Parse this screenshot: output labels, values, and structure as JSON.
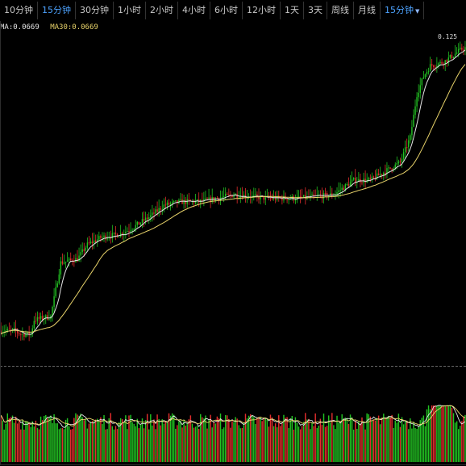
{
  "toolbar": {
    "tabs": [
      {
        "label": "10分钟",
        "active": false
      },
      {
        "label": "15分钟",
        "active": true
      },
      {
        "label": "30分钟",
        "active": false
      },
      {
        "label": "1小时",
        "active": false
      },
      {
        "label": "2小时",
        "active": false
      },
      {
        "label": "4小时",
        "active": false
      },
      {
        "label": "6小时",
        "active": false
      },
      {
        "label": "12小时",
        "active": false
      },
      {
        "label": "1天",
        "active": false
      },
      {
        "label": "3天",
        "active": false
      },
      {
        "label": "周线",
        "active": false
      },
      {
        "label": "月线",
        "active": false
      }
    ],
    "period_dropdown": {
      "label": "15分钟",
      "icon": "caret-down-icon"
    }
  },
  "legend": {
    "ma1": "MA:0.0669",
    "ma2": "MA30:0.0669"
  },
  "high_marker": "0.125",
  "colors": {
    "up": "#22c222",
    "down": "#e22d2d",
    "ma_fast": "#e6e6e6",
    "ma_slow": "#e8d36a",
    "active_tab": "#4da3ff"
  },
  "chart_data": {
    "type": "candlestick",
    "price_anchors": [
      [
        0,
        0.046
      ],
      [
        8,
        0.046
      ],
      [
        12,
        0.045
      ],
      [
        18,
        0.045
      ],
      [
        20,
        0.049
      ],
      [
        30,
        0.05
      ],
      [
        36,
        0.065
      ],
      [
        46,
        0.066
      ],
      [
        52,
        0.07
      ],
      [
        60,
        0.072
      ],
      [
        72,
        0.073
      ],
      [
        80,
        0.075
      ],
      [
        90,
        0.078
      ],
      [
        98,
        0.081
      ],
      [
        108,
        0.082
      ],
      [
        120,
        0.082
      ],
      [
        140,
        0.084
      ],
      [
        160,
        0.083
      ],
      [
        180,
        0.083
      ],
      [
        200,
        0.084
      ],
      [
        212,
        0.088
      ],
      [
        222,
        0.088
      ],
      [
        240,
        0.093
      ],
      [
        246,
        0.1
      ],
      [
        250,
        0.112
      ],
      [
        254,
        0.117
      ],
      [
        258,
        0.12
      ],
      [
        266,
        0.121
      ],
      [
        278,
        0.125
      ]
    ],
    "candle_count": 280,
    "volume_range": [
      0,
      1
    ],
    "price_range": [
      0.04,
      0.128
    ]
  }
}
